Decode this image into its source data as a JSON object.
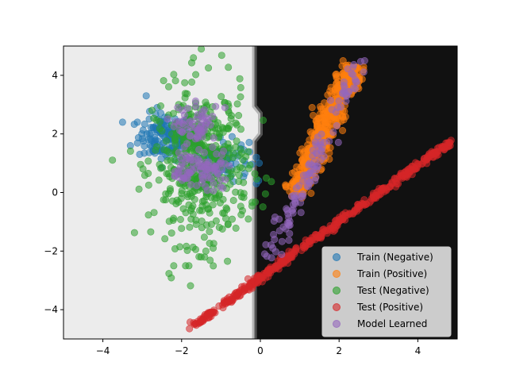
{
  "chart_data": {
    "type": "scatter",
    "xlim": [
      -5,
      5
    ],
    "ylim": [
      -5,
      5
    ],
    "x_ticks": [
      -4,
      -2,
      0,
      2,
      4
    ],
    "y_ticks": [
      -4,
      -2,
      0,
      2,
      4
    ],
    "x_tick_labels": [
      "−4",
      "−2",
      "0",
      "2",
      "4"
    ],
    "y_tick_labels": [
      "−4",
      "−2",
      "0",
      "2",
      "4"
    ],
    "grid": false,
    "legend_position": "bottom-right",
    "background": {
      "negative_region_color": "#ececec",
      "positive_region_color": "#111111",
      "boundary_x": [
        -0.15,
        -0.15,
        0.0,
        0.0,
        -0.15,
        -0.15
      ],
      "boundary_y": [
        5,
        2.95,
        2.7,
        2.0,
        1.75,
        -5
      ]
    },
    "series": [
      {
        "name": "Train (Negative)",
        "color": "#1f77b4",
        "clusters": [
          {
            "cx": -2.4,
            "cy": 1.9,
            "sx": 0.35,
            "sy": 0.4,
            "n": 150
          },
          {
            "cx": -1.0,
            "cy": 1.1,
            "sx": 0.35,
            "sy": 0.35,
            "n": 90
          }
        ],
        "points": [
          [
            -3.5,
            2.4
          ],
          [
            -3.3,
            1.6
          ],
          [
            -2.9,
            3.3
          ],
          [
            -0.1,
            1.2
          ],
          [
            -0.1,
            0.3
          ],
          [
            -0.5,
            1.5
          ]
        ]
      },
      {
        "name": "Train (Positive)",
        "color": "#ff7f0e",
        "line": {
          "x0": 0.9,
          "y0": 0.0,
          "x1": 2.35,
          "y1": 4.3,
          "spread": 0.15,
          "n": 500
        },
        "points": [
          [
            2.1,
            4.5
          ],
          [
            1.4,
            0.5
          ],
          [
            2.5,
            3.9
          ]
        ]
      },
      {
        "name": "Test (Negative)",
        "color": "#2ca02c",
        "clusters": [
          {
            "cx": -1.5,
            "cy": 0.9,
            "sx": 0.6,
            "sy": 1.3,
            "n": 500
          }
        ],
        "points": [
          [
            -1.5,
            4.9
          ],
          [
            -1.7,
            4.6
          ],
          [
            -2.2,
            -2.5
          ],
          [
            -1.9,
            -2.5
          ],
          [
            -1.2,
            -1.9
          ],
          [
            -2.5,
            2.1
          ]
        ]
      },
      {
        "name": "Test (Positive)",
        "color": "#d62728",
        "line": {
          "x0": -1.7,
          "y0": -4.55,
          "x1": 4.85,
          "y1": 1.75,
          "spread": 0.05,
          "n": 450
        },
        "points": [
          [
            -1.8,
            -4.65
          ],
          [
            4.8,
            1.7
          ],
          [
            -1.3,
            -4.25
          ]
        ]
      },
      {
        "name": "Model Learned",
        "color": "#9467bd",
        "clusters": [
          {
            "cx": -1.6,
            "cy": 2.2,
            "sx": 0.25,
            "sy": 0.35,
            "n": 60
          },
          {
            "cx": -1.8,
            "cy": 0.8,
            "sx": 0.25,
            "sy": 0.3,
            "n": 50
          },
          {
            "cx": -1.2,
            "cy": 0.8,
            "sx": 0.2,
            "sy": 0.3,
            "n": 40
          }
        ],
        "line": {
          "x0": 0.25,
          "y0": -2.3,
          "x1": 2.45,
          "y1": 4.4,
          "spread": 0.12,
          "n": 120
        },
        "points": [
          [
            2.65,
            4.5
          ],
          [
            -2.1,
            2.9
          ],
          [
            -0.9,
            2.9
          ],
          [
            -0.95,
            0.15
          ]
        ]
      }
    ]
  }
}
